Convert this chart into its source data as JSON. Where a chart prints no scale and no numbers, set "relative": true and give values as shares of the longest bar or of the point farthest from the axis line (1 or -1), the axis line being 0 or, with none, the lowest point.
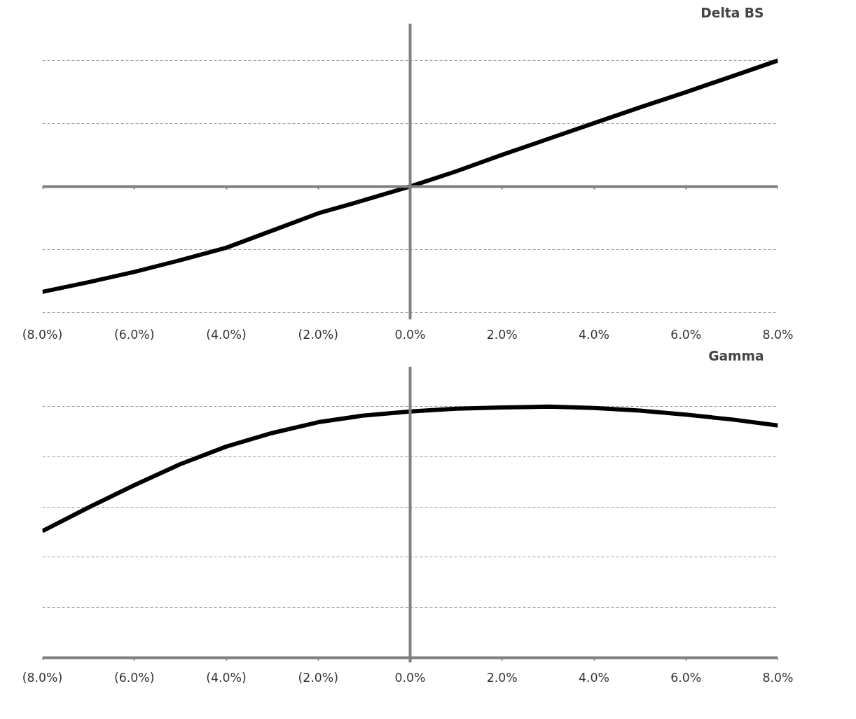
{
  "chart_data": [
    {
      "type": "line",
      "title": "Delta BS",
      "relative": true,
      "x": [
        -8,
        -7,
        -6,
        -5,
        -4,
        -3,
        -2,
        -1,
        0,
        1,
        2,
        3,
        4,
        5,
        6,
        7,
        8
      ],
      "series": [
        {
          "color": "#000000",
          "values": [
            -0.836,
            -0.76,
            -0.678,
            -0.585,
            -0.486,
            -0.35,
            -0.213,
            -0.109,
            0,
            0.12,
            0.251,
            0.377,
            0.503,
            0.628,
            0.749,
            0.874,
            1
          ]
        }
      ],
      "xlim": [
        -8,
        8
      ],
      "xticks": [
        {
          "value": -8,
          "label": "(8.0%)"
        },
        {
          "value": -6,
          "label": "(6.0%)"
        },
        {
          "value": -4,
          "label": "(4.0%)"
        },
        {
          "value": -2,
          "label": "(2.0%)"
        },
        {
          "value": 0,
          "label": "0.0%"
        },
        {
          "value": 2,
          "label": "2.0%"
        },
        {
          "value": 4,
          "label": "4.0%"
        },
        {
          "value": 6,
          "label": "6.0%"
        },
        {
          "value": 8,
          "label": "8.0%"
        }
      ],
      "ref_lines": [
        {
          "axis": "x",
          "value": 0,
          "color": "#808080"
        }
      ],
      "grid": "y",
      "marker": "none",
      "line_style": "solid",
      "tick_labels": "x"
    },
    {
      "type": "line",
      "title": "Gamma",
      "relative": true,
      "x": [
        -8,
        -7,
        -6,
        -5,
        -4,
        -3,
        -2,
        -1,
        0,
        1,
        2,
        3,
        4,
        5,
        6,
        7,
        8
      ],
      "series": [
        {
          "color": "#000000",
          "values": [
            0.504,
            0.598,
            0.687,
            0.771,
            0.841,
            0.895,
            0.938,
            0.965,
            0.981,
            0.992,
            0.997,
            1,
            0.995,
            0.984,
            0.968,
            0.949,
            0.925
          ]
        }
      ],
      "xlim": [
        -8,
        8
      ],
      "xticks": [
        {
          "value": -8,
          "label": "(8.0%)"
        },
        {
          "value": -6,
          "label": "(6.0%)"
        },
        {
          "value": -4,
          "label": "(4.0%)"
        },
        {
          "value": -2,
          "label": "(2.0%)"
        },
        {
          "value": 0,
          "label": "0.0%"
        },
        {
          "value": 2,
          "label": "2.0%"
        },
        {
          "value": 4,
          "label": "4.0%"
        },
        {
          "value": 6,
          "label": "6.0%"
        },
        {
          "value": 8,
          "label": "8.0%"
        }
      ],
      "ref_lines": [
        {
          "axis": "x",
          "value": 0,
          "color": "#808080"
        }
      ],
      "grid": "y",
      "marker": "none",
      "line_style": "solid",
      "tick_labels": "x"
    }
  ]
}
